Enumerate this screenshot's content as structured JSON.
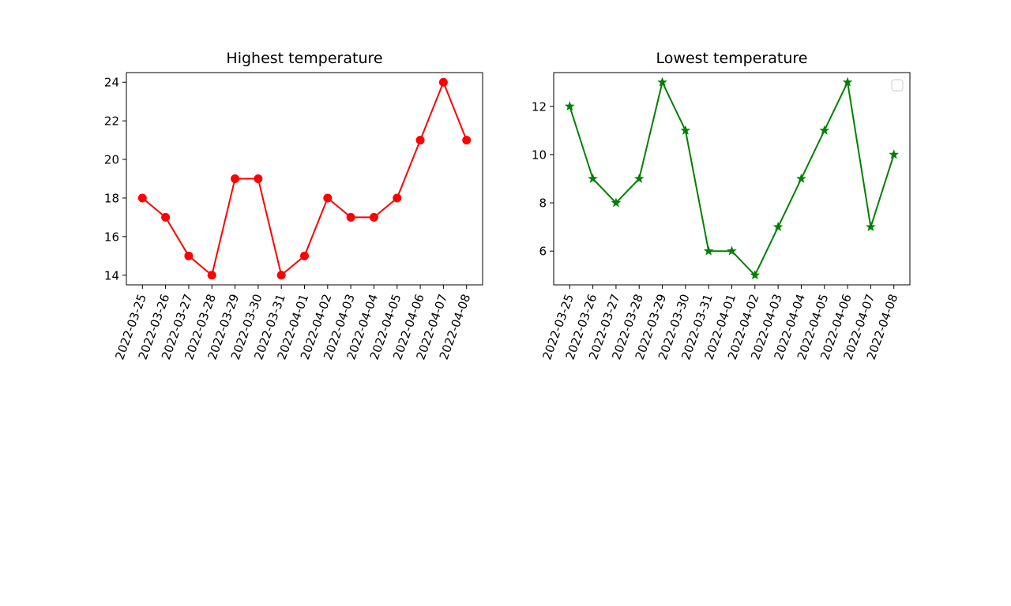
{
  "colors": {
    "high": "#ff0000",
    "low": "#008000",
    "axes": "#000000"
  },
  "chart_data": [
    {
      "type": "line",
      "title": "Highest temperature",
      "xlabel": "",
      "ylabel": "",
      "x": [
        "2022-03-25",
        "2022-03-26",
        "2022-03-27",
        "2022-03-28",
        "2022-03-29",
        "2022-03-30",
        "2022-03-31",
        "2022-04-01",
        "2022-04-02",
        "2022-04-03",
        "2022-04-04",
        "2022-04-05",
        "2022-04-06",
        "2022-04-07",
        "2022-04-08"
      ],
      "series": [
        {
          "values": [
            18,
            17,
            15,
            14,
            19,
            19,
            14,
            15,
            18,
            17,
            17,
            18,
            21,
            24,
            21
          ],
          "color": "#ff0000",
          "marker": "circle"
        }
      ],
      "ylim": [
        13.5,
        24.5
      ],
      "yticks": [
        14,
        16,
        18,
        20,
        22,
        24
      ],
      "grid": false,
      "legend": "none"
    },
    {
      "type": "line",
      "title": "Lowest temperature",
      "xlabel": "",
      "ylabel": "",
      "x": [
        "2022-03-25",
        "2022-03-26",
        "2022-03-27",
        "2022-03-28",
        "2022-03-29",
        "2022-03-30",
        "2022-03-31",
        "2022-04-01",
        "2022-04-02",
        "2022-04-03",
        "2022-04-04",
        "2022-04-05",
        "2022-04-06",
        "2022-04-07",
        "2022-04-08"
      ],
      "series": [
        {
          "values": [
            12,
            9,
            8,
            9,
            13,
            11,
            6,
            6,
            5,
            7,
            9,
            11,
            13,
            7,
            10
          ],
          "color": "#008000",
          "marker": "star"
        }
      ],
      "ylim": [
        4.6,
        13.4
      ],
      "yticks": [
        6,
        8,
        10,
        12
      ],
      "grid": false,
      "legend": "upper right (empty)"
    }
  ]
}
